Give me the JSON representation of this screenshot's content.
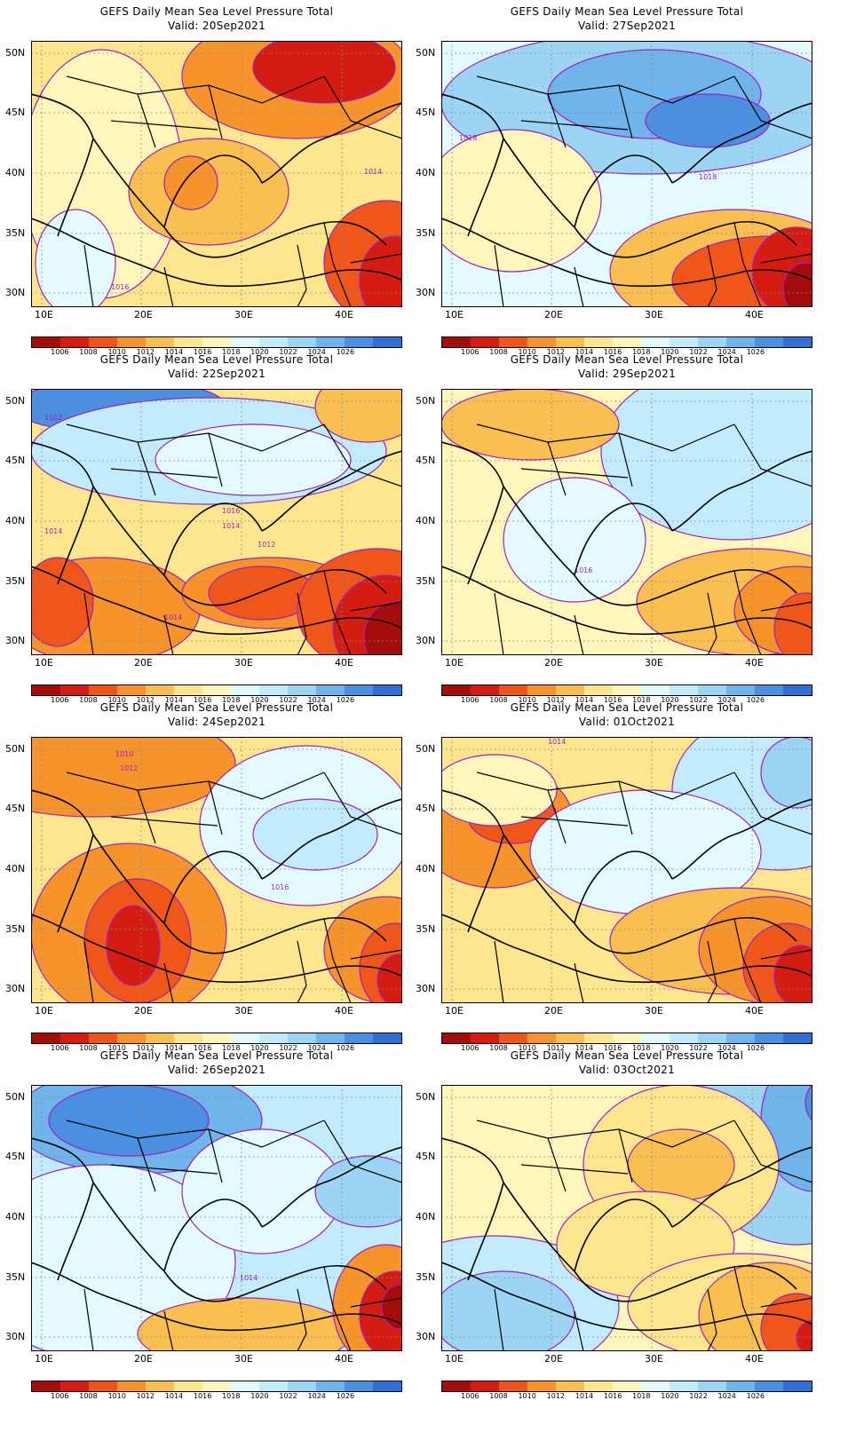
{
  "common": {
    "title": "GEFS Daily Mean Sea Level Pressure Total",
    "lat_labels": [
      "50N",
      "45N",
      "40N",
      "35N",
      "30N"
    ],
    "lon_labels": [
      "10E",
      "20E",
      "30E",
      "40E"
    ],
    "colorbar_labels": [
      "1006",
      "1008",
      "1010",
      "1012",
      "1014",
      "1016",
      "1018",
      "1020",
      "1022",
      "1024",
      "1026"
    ],
    "colorbar_colors": [
      "#a50c0c",
      "#d41c12",
      "#f0561a",
      "#f6932a",
      "#f9c051",
      "#fde68e",
      "#fff6bb",
      "#e3fbff",
      "#c2ecfb",
      "#9cd5f3",
      "#6fb4ea",
      "#4a8fe0",
      "#2f6fd6"
    ]
  },
  "panels": [
    {
      "valid": "Valid: 20Sep2021",
      "labels": [
        "1014",
        "1016"
      ]
    },
    {
      "valid": "Valid: 27Sep2021",
      "labels": [
        "1018",
        "1018"
      ]
    },
    {
      "valid": "Valid: 22Sep2021",
      "labels": [
        "1022",
        "1016",
        "1014",
        "1014",
        "1012",
        "1014"
      ]
    },
    {
      "valid": "Valid: 29Sep2021",
      "labels": [
        "1016"
      ]
    },
    {
      "valid": "Valid: 24Sep2021",
      "labels": [
        "1010",
        "1012",
        "1016"
      ]
    },
    {
      "valid": "Valid: 01Oct2021",
      "labels": [
        "1014"
      ]
    },
    {
      "valid": "Valid: 26Sep2021",
      "labels": [
        "1014"
      ]
    },
    {
      "valid": "Valid: 03Oct2021",
      "labels": []
    }
  ]
}
